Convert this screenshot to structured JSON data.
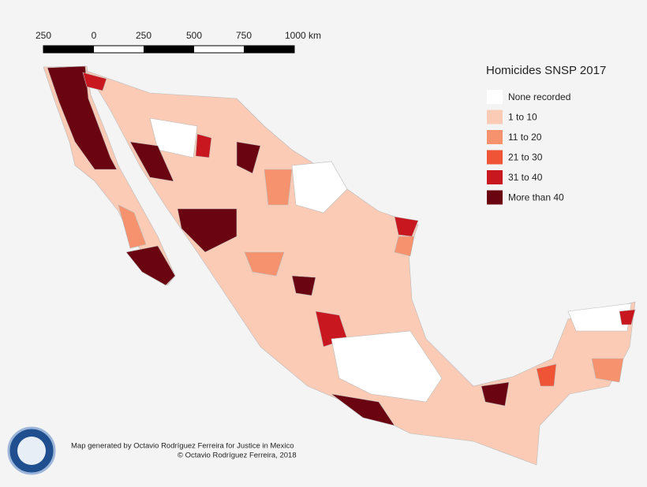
{
  "scale_bar": {
    "labels": [
      "250",
      "0",
      "250",
      "500",
      "750",
      "1000 km"
    ]
  },
  "legend": {
    "title": "Homicides SNSP 2017",
    "items": [
      {
        "label": "None recorded",
        "color": "#ffffff"
      },
      {
        "label": "1 to 10",
        "color": "#fbcbb5"
      },
      {
        "label": "11 to 20",
        "color": "#f6926d"
      },
      {
        "label": "21 to 30",
        "color": "#ef5437"
      },
      {
        "label": "31 to 40",
        "color": "#c8171e"
      },
      {
        "label": "More than 40",
        "color": "#6b0411"
      }
    ]
  },
  "credits": [
    "Map generated by Octavio Rodríguez Ferreira for Justice in Mexico",
    "© Octavio Rodríguez Ferreira, 2018"
  ]
}
